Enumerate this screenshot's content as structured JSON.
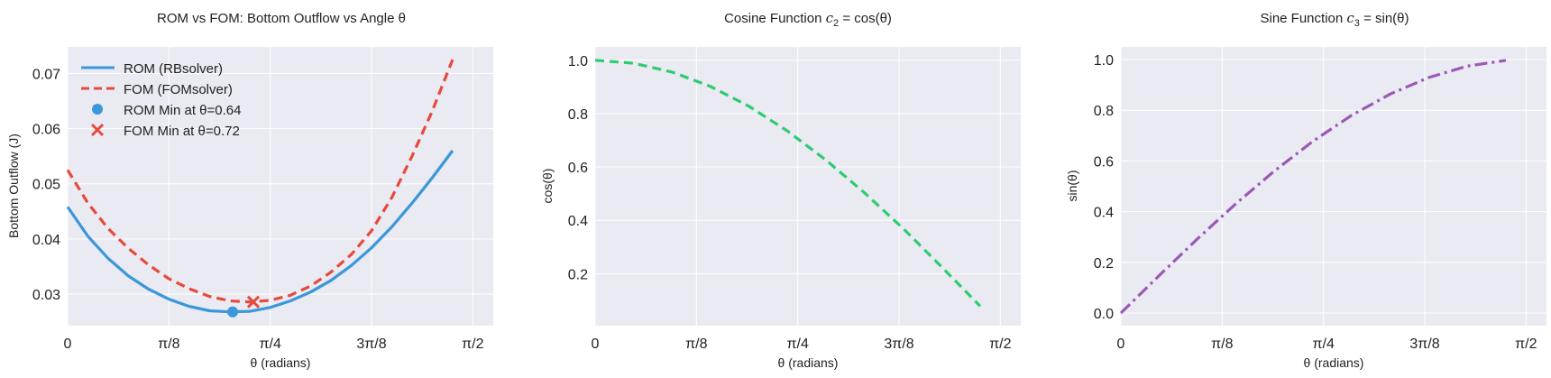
{
  "chart_data": [
    {
      "type": "line",
      "title": "ROM vs FOM: Bottom Outflow vs Angle θ",
      "xlabel": "θ (radians)",
      "ylabel": "Bottom Outflow (J)",
      "xlim": [
        0,
        1.65
      ],
      "ylim": [
        0.0243,
        0.0748
      ],
      "xticks": [
        {
          "value": 0,
          "label": "0"
        },
        {
          "value": 0.3927,
          "label": "π/8"
        },
        {
          "value": 0.7854,
          "label": "π/4"
        },
        {
          "value": 1.1781,
          "label": "3π/8"
        },
        {
          "value": 1.5708,
          "label": "π/2"
        }
      ],
      "yticks": [
        {
          "value": 0.03,
          "label": "0.03"
        },
        {
          "value": 0.04,
          "label": "0.04"
        },
        {
          "value": 0.05,
          "label": "0.05"
        },
        {
          "value": 0.06,
          "label": "0.06"
        },
        {
          "value": 0.07,
          "label": "0.07"
        }
      ],
      "grid": true,
      "legend_position": "top-left",
      "series": [
        {
          "name": "ROM (RBsolver)",
          "style": "solid",
          "color": "#3a97d9",
          "x": [
            0,
            0.0785,
            0.1571,
            0.2356,
            0.3142,
            0.3927,
            0.4712,
            0.5498,
            0.6283,
            0.7069,
            0.7854,
            0.8639,
            0.9425,
            1.021,
            1.0996,
            1.1781,
            1.2566,
            1.3352,
            1.4137,
            1.4923
          ],
          "y": [
            0.0458,
            0.0405,
            0.0365,
            0.0333,
            0.0309,
            0.0291,
            0.0278,
            0.027,
            0.0268,
            0.0269,
            0.0276,
            0.0288,
            0.0304,
            0.0325,
            0.0352,
            0.0384,
            0.0422,
            0.0465,
            0.0511,
            0.056
          ]
        },
        {
          "name": "FOM (FOMsolver)",
          "style": "dashed",
          "color": "#e64a3c",
          "x": [
            0,
            0.0785,
            0.1571,
            0.2356,
            0.3142,
            0.3927,
            0.4712,
            0.5498,
            0.6283,
            0.7069,
            0.7854,
            0.8639,
            0.9425,
            1.021,
            1.0996,
            1.1781,
            1.2566,
            1.3352,
            1.4137,
            1.4923
          ],
          "y": [
            0.0525,
            0.0465,
            0.0419,
            0.0383,
            0.0353,
            0.0328,
            0.031,
            0.0296,
            0.0288,
            0.0286,
            0.0289,
            0.0298,
            0.0315,
            0.034,
            0.0372,
            0.0415,
            0.0475,
            0.055,
            0.0632,
            0.0725
          ]
        }
      ],
      "markers": [
        {
          "name": "ROM Min at θ=0.64",
          "shape": "circle",
          "color": "#3a97d9",
          "x": 0.64,
          "y": 0.0268
        },
        {
          "name": "FOM Min at θ=0.72",
          "shape": "x",
          "color": "#e64a3c",
          "x": 0.72,
          "y": 0.0286
        }
      ]
    },
    {
      "type": "line",
      "title_plain": "Cosine Function ",
      "title_math": "c",
      "title_sub": "2",
      "title_rest": " = cos(θ)",
      "xlabel": "θ (radians)",
      "ylabel": "cos(θ)",
      "xlim": [
        0,
        1.65
      ],
      "ylim": [
        0.005,
        1.05
      ],
      "xticks": [
        {
          "value": 0,
          "label": "0"
        },
        {
          "value": 0.3927,
          "label": "π/8"
        },
        {
          "value": 0.7854,
          "label": "π/4"
        },
        {
          "value": 1.1781,
          "label": "3π/8"
        },
        {
          "value": 1.5708,
          "label": "π/2"
        }
      ],
      "yticks": [
        {
          "value": 0.2,
          "label": "0.2"
        },
        {
          "value": 0.4,
          "label": "0.4"
        },
        {
          "value": 0.6,
          "label": "0.6"
        },
        {
          "value": 0.8,
          "label": "0.8"
        },
        {
          "value": 1.0,
          "label": "1.0"
        }
      ],
      "grid": true,
      "series": [
        {
          "style": "dashed",
          "color": "#2ecc71",
          "x": [
            0,
            0.1492,
            0.2985,
            0.4477,
            0.597,
            0.7462,
            0.8954,
            1.0447,
            1.1939,
            1.3432,
            1.4924
          ],
          "y": [
            1.0,
            0.9889,
            0.9558,
            0.9014,
            0.827,
            0.7342,
            0.6254,
            0.5029,
            0.3695,
            0.2255,
            0.0783
          ]
        }
      ]
    },
    {
      "type": "line",
      "title_plain": "Sine Function ",
      "title_math": "c",
      "title_sub": "3",
      "title_rest": " = sin(θ)",
      "xlabel": "θ (radians)",
      "ylabel": "sin(θ)",
      "xlim": [
        0,
        1.65
      ],
      "ylim": [
        -0.05,
        1.05
      ],
      "xticks": [
        {
          "value": 0,
          "label": "0"
        },
        {
          "value": 0.3927,
          "label": "π/8"
        },
        {
          "value": 0.7854,
          "label": "π/4"
        },
        {
          "value": 1.1781,
          "label": "3π/8"
        },
        {
          "value": 1.5708,
          "label": "π/2"
        }
      ],
      "yticks": [
        {
          "value": 0.0,
          "label": "0.0"
        },
        {
          "value": 0.2,
          "label": "0.2"
        },
        {
          "value": 0.4,
          "label": "0.4"
        },
        {
          "value": 0.6,
          "label": "0.6"
        },
        {
          "value": 0.8,
          "label": "0.8"
        },
        {
          "value": 1.0,
          "label": "1.0"
        }
      ],
      "grid": true,
      "series": [
        {
          "style": "dashdot",
          "color": "#9b59b6",
          "x": [
            0,
            0.1492,
            0.2985,
            0.4477,
            0.597,
            0.7462,
            0.8954,
            1.0447,
            1.1939,
            1.3432,
            1.4924
          ],
          "y": [
            0.0,
            0.1487,
            0.2941,
            0.4329,
            0.5621,
            0.679,
            0.7804,
            0.8643,
            0.9292,
            0.9743,
            0.997
          ]
        }
      ]
    }
  ]
}
